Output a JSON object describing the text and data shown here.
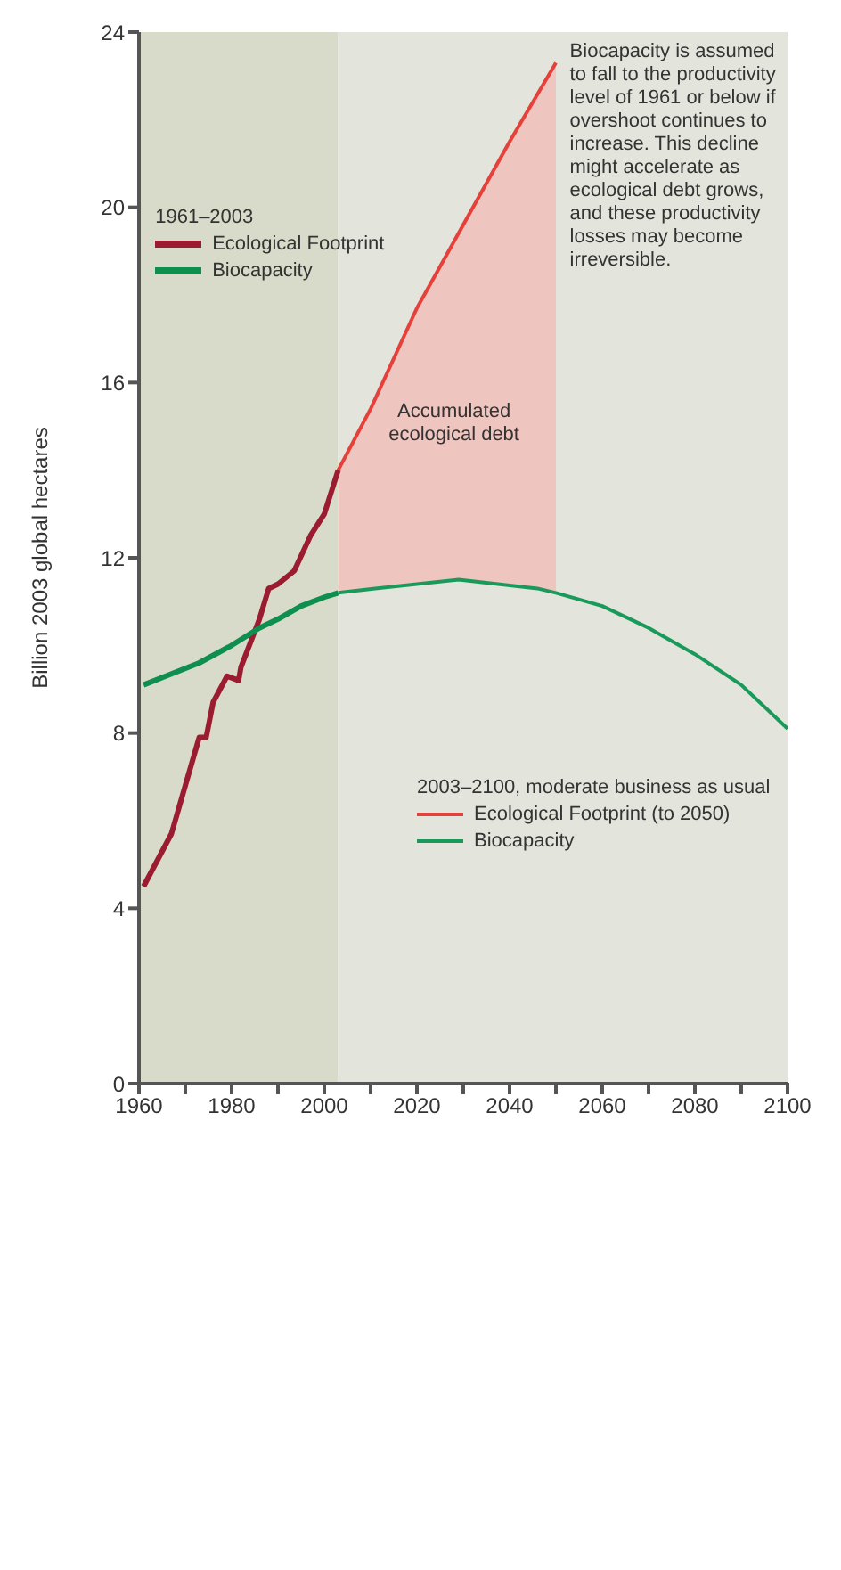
{
  "chart_data": {
    "type": "line",
    "ylabel": "Billion 2003 global hectares",
    "legend_title": "1961–2003",
    "legend": "top left",
    "marker": "none",
    "line_style": "solid",
    "xlim": [
      1960,
      2100
    ],
    "xticks": [
      1960,
      {
        "value": 1970,
        "label": null
      },
      1980,
      {
        "value": 1990,
        "label": null
      },
      2000,
      {
        "value": 2010,
        "label": null
      },
      2020,
      {
        "value": 2030,
        "label": null
      },
      2040,
      {
        "value": 2050,
        "label": null
      },
      2060,
      {
        "value": 2070,
        "label": null
      },
      2080,
      {
        "value": 2090,
        "label": null
      },
      2100
    ],
    "ylim": [
      0,
      24
    ],
    "yticks": [
      0,
      4,
      8,
      12,
      16,
      20,
      24
    ],
    "bands": [
      {
        "axis": "x",
        "from": 1960,
        "to": 2003,
        "color": "#d8dbc9"
      },
      {
        "axis": "x",
        "from": 2003,
        "to": 2100,
        "color": "#e3e5dc"
      }
    ],
    "series": [
      {
        "name": "Ecological Footprint",
        "color": "#9b1b30",
        "x": [
          1961,
          1967,
          1970,
          1973,
          1974.5,
          1976,
          1979,
          1981.5,
          1982,
          1986,
          1988,
          1990,
          1993.5,
          1997,
          2000,
          2003
        ],
        "values": [
          4.5,
          5.7,
          6.8,
          7.9,
          7.9,
          8.7,
          9.3,
          9.2,
          9.5,
          10.6,
          11.3,
          11.4,
          11.7,
          12.5,
          13.0,
          14.0
        ]
      },
      {
        "name": "Biocapacity",
        "color": "#0f8f4f",
        "x": [
          1961,
          1973,
          1980,
          1986,
          1990,
          1995,
          2000,
          2003
        ],
        "values": [
          9.1,
          9.6,
          10.0,
          10.4,
          10.6,
          10.9,
          11.1,
          11.2
        ]
      },
      {
        "name": "Ecological Footprint (to 2050)",
        "color": "#e5403a",
        "x": [
          2003,
          2010,
          2020,
          2030,
          2040,
          2050
        ],
        "values": [
          14.0,
          15.4,
          17.7,
          19.6,
          21.5,
          23.3
        ],
        "lower": [
          11.2,
          11.3,
          11.4,
          11.5,
          11.4,
          11.2
        ],
        "upper": [
          14.0,
          15.4,
          17.7,
          19.6,
          21.5,
          23.3
        ]
      },
      {
        "name": "Biocapacity",
        "color": "#1a9a5a",
        "x": [
          2003,
          2011,
          2029,
          2046,
          2050,
          2060,
          2070,
          2080,
          2090,
          2100
        ],
        "values": [
          11.2,
          11.3,
          11.5,
          11.3,
          11.2,
          10.9,
          10.4,
          9.8,
          9.1,
          8.1
        ]
      }
    ],
    "annotations": [
      "2003–2100, moderate business as usual",
      "Accumulated ecological debt",
      "Biocapacity is assumed to fall to the productivity level of 1961 or below if overshoot continues to increase. This decline might accelerate as ecological debt grows, and these productivity losses may become irreversible."
    ]
  }
}
